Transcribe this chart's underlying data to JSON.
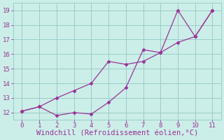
{
  "line1_x": [
    0,
    1,
    2,
    3,
    4,
    5,
    6,
    7,
    8,
    9,
    10,
    11
  ],
  "line1_y": [
    12.1,
    12.4,
    11.8,
    12.0,
    11.9,
    12.7,
    13.7,
    16.3,
    16.1,
    19.0,
    17.2,
    19.0
  ],
  "line2_x": [
    0,
    1,
    2,
    3,
    4,
    5,
    6,
    7,
    8,
    9,
    10,
    11
  ],
  "line2_y": [
    12.1,
    12.4,
    13.0,
    13.5,
    14.0,
    15.5,
    15.3,
    15.5,
    16.1,
    16.8,
    17.2,
    19.0
  ],
  "line_color": "#993399",
  "marker": "D",
  "markersize": 2.5,
  "linewidth": 0.9,
  "xlabel": "Windchill (Refroidissement éolien,°C)",
  "xlabel_fontsize": 7.5,
  "xlim": [
    -0.5,
    11.5
  ],
  "ylim": [
    11.5,
    19.5
  ],
  "xticks": [
    0,
    1,
    2,
    3,
    4,
    5,
    6,
    7,
    8,
    9,
    10,
    11
  ],
  "yticks": [
    12,
    13,
    14,
    15,
    16,
    17,
    18,
    19
  ],
  "bg_color": "#cceee8",
  "grid_color": "#99cccc",
  "tick_color": "#993399",
  "label_color": "#993399"
}
